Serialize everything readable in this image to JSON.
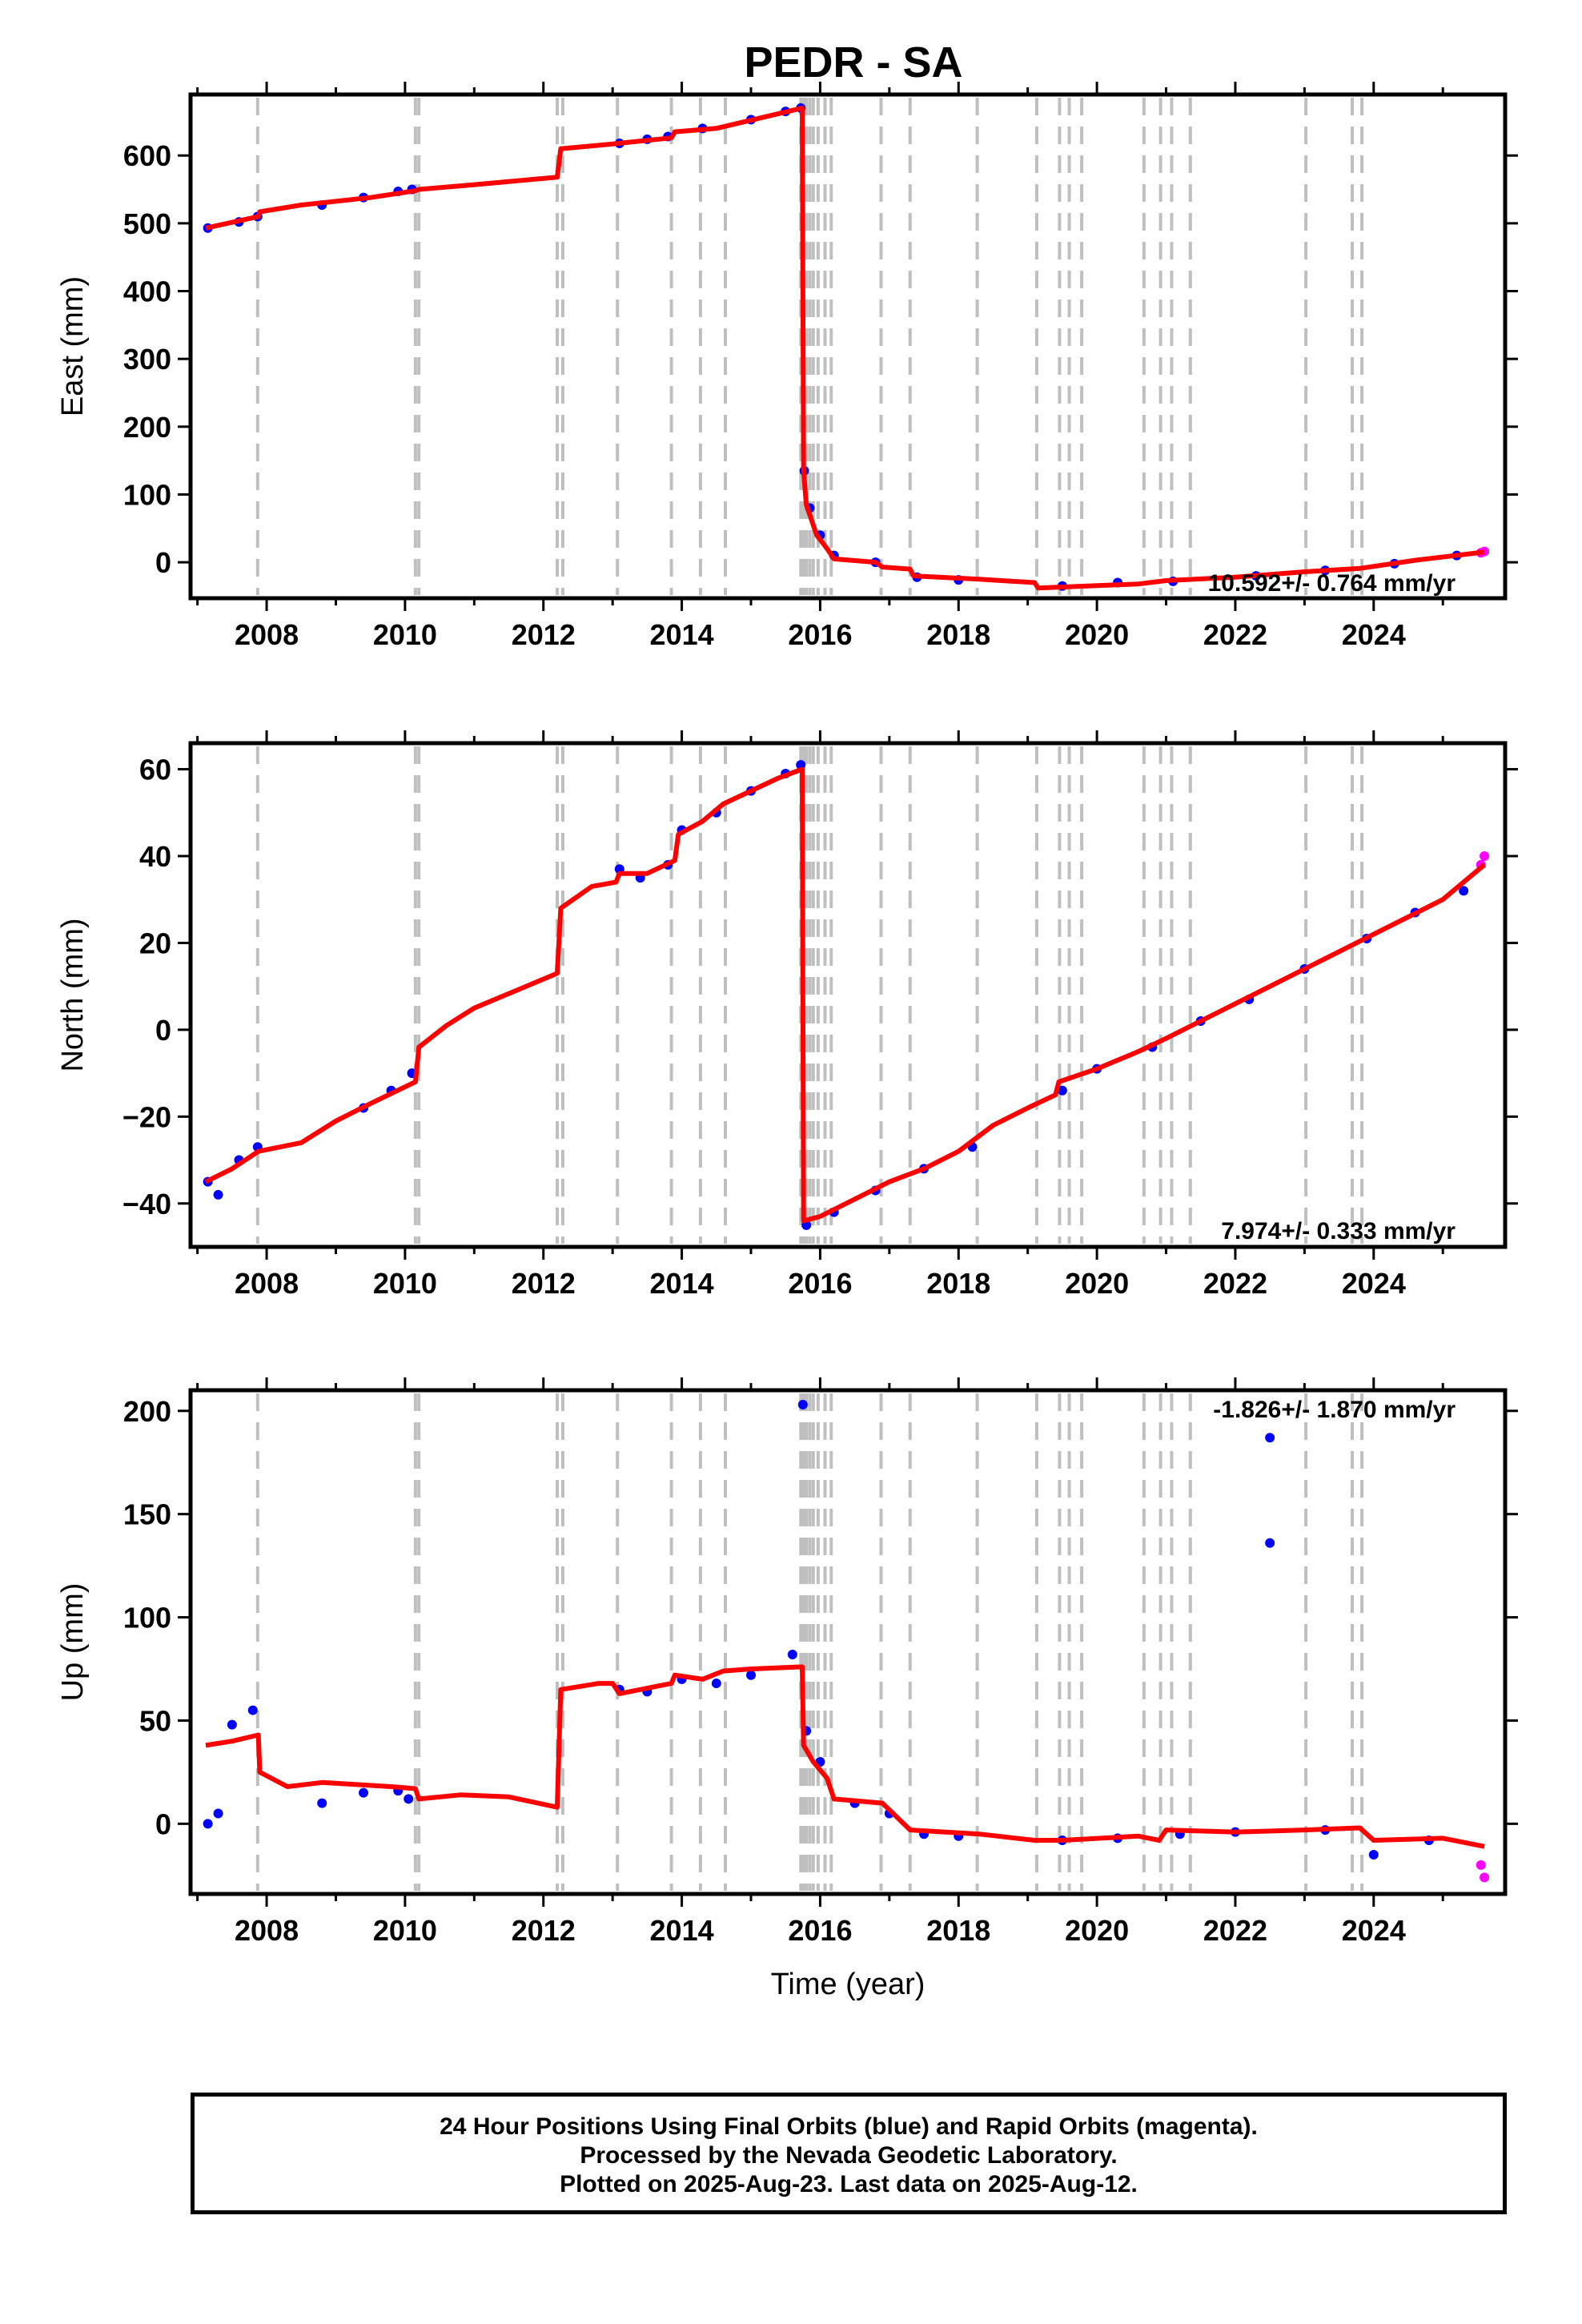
{
  "title": "PEDR - SA",
  "colors": {
    "final_orbit_points": "#0000ff",
    "rapid_orbit_points": "#ff00ff",
    "model_line": "#ff0000",
    "event_lines": "#bfbfbf"
  },
  "chart_data": [
    {
      "type": "scatter",
      "panel": "east",
      "ylabel": "East (mm)",
      "xlabel": "",
      "xlim": [
        2006.9,
        2025.9
      ],
      "ylim": [
        -53,
        690
      ],
      "xticks": [
        2008,
        2010,
        2012,
        2014,
        2016,
        2018,
        2020,
        2022,
        2024
      ],
      "yticks": [
        0,
        100,
        200,
        300,
        400,
        500,
        600
      ],
      "rate_label": "10.592+/- 0.764 mm/yr",
      "grid": false,
      "model_line": [
        [
          2007.12,
          493
        ],
        [
          2007.88,
          510
        ],
        [
          2007.9,
          517
        ],
        [
          2008.5,
          527
        ],
        [
          2009.5,
          538
        ],
        [
          2010.15,
          548
        ],
        [
          2010.2,
          550
        ],
        [
          2011.0,
          557
        ],
        [
          2012.2,
          568
        ],
        [
          2012.25,
          610
        ],
        [
          2013.0,
          617
        ],
        [
          2013.08,
          618
        ],
        [
          2013.85,
          626
        ],
        [
          2013.9,
          635
        ],
        [
          2014.5,
          640
        ],
        [
          2015.74,
          670
        ],
        [
          2015.76,
          135
        ],
        [
          2015.8,
          85
        ],
        [
          2015.95,
          40
        ],
        [
          2016.1,
          20
        ],
        [
          2016.2,
          5
        ],
        [
          2016.8,
          0
        ],
        [
          2016.9,
          -7
        ],
        [
          2017.3,
          -10
        ],
        [
          2017.35,
          -20
        ],
        [
          2018.3,
          -25
        ],
        [
          2019.1,
          -30
        ],
        [
          2019.15,
          -38
        ],
        [
          2020.6,
          -32
        ],
        [
          2021.0,
          -27
        ],
        [
          2022.0,
          -22
        ],
        [
          2023.0,
          -14
        ],
        [
          2023.8,
          -9
        ],
        [
          2024.6,
          3
        ],
        [
          2025.6,
          15
        ]
      ],
      "observations_final": [
        [
          2007.15,
          493
        ],
        [
          2007.6,
          502
        ],
        [
          2007.87,
          510
        ],
        [
          2008.8,
          527
        ],
        [
          2009.4,
          538
        ],
        [
          2009.9,
          547
        ],
        [
          2010.1,
          550
        ],
        [
          2013.1,
          618
        ],
        [
          2013.5,
          624
        ],
        [
          2013.8,
          628
        ],
        [
          2014.3,
          640
        ],
        [
          2015.0,
          653
        ],
        [
          2015.5,
          665
        ],
        [
          2015.72,
          670
        ],
        [
          2015.77,
          135
        ],
        [
          2015.85,
          80
        ],
        [
          2016.0,
          40
        ],
        [
          2016.2,
          10
        ],
        [
          2016.8,
          0
        ],
        [
          2017.4,
          -22
        ],
        [
          2018.0,
          -26
        ],
        [
          2019.5,
          -35
        ],
        [
          2020.3,
          -30
        ],
        [
          2021.1,
          -28
        ],
        [
          2022.3,
          -20
        ],
        [
          2023.3,
          -12
        ],
        [
          2024.3,
          -2
        ],
        [
          2025.2,
          10
        ]
      ],
      "observations_rapid": [
        [
          2025.55,
          14
        ],
        [
          2025.6,
          16
        ]
      ]
    },
    {
      "type": "scatter",
      "panel": "north",
      "ylabel": "North (mm)",
      "xlabel": "",
      "xlim": [
        2006.9,
        2025.9
      ],
      "ylim": [
        -50,
        66
      ],
      "xticks": [
        2008,
        2010,
        2012,
        2014,
        2016,
        2018,
        2020,
        2022,
        2024
      ],
      "yticks": [
        -40,
        -20,
        0,
        20,
        40,
        60
      ],
      "rate_label": "7.974+/- 0.333 mm/yr",
      "grid": false,
      "model_line": [
        [
          2007.12,
          -35
        ],
        [
          2007.5,
          -32
        ],
        [
          2007.88,
          -28
        ],
        [
          2008.5,
          -26
        ],
        [
          2009.0,
          -21
        ],
        [
          2009.5,
          -17
        ],
        [
          2010.15,
          -12
        ],
        [
          2010.2,
          -4
        ],
        [
          2010.6,
          1
        ],
        [
          2011.0,
          5
        ],
        [
          2011.6,
          9
        ],
        [
          2012.2,
          13
        ],
        [
          2012.25,
          28
        ],
        [
          2012.7,
          33
        ],
        [
          2013.05,
          34
        ],
        [
          2013.1,
          36
        ],
        [
          2013.5,
          36
        ],
        [
          2013.9,
          39
        ],
        [
          2013.95,
          45
        ],
        [
          2014.3,
          48
        ],
        [
          2014.6,
          52
        ],
        [
          2015.0,
          55
        ],
        [
          2015.4,
          58
        ],
        [
          2015.74,
          60
        ],
        [
          2015.76,
          -44
        ],
        [
          2016.0,
          -43
        ],
        [
          2016.5,
          -39
        ],
        [
          2017.0,
          -35
        ],
        [
          2017.5,
          -32
        ],
        [
          2018.0,
          -28
        ],
        [
          2018.5,
          -22
        ],
        [
          2019.0,
          -18
        ],
        [
          2019.4,
          -15
        ],
        [
          2019.45,
          -12
        ],
        [
          2020.0,
          -9
        ],
        [
          2020.6,
          -5
        ],
        [
          2021.0,
          -2
        ],
        [
          2021.5,
          2
        ],
        [
          2022.0,
          6
        ],
        [
          2022.5,
          10
        ],
        [
          2023.0,
          14
        ],
        [
          2023.5,
          18
        ],
        [
          2024.0,
          22
        ],
        [
          2024.5,
          26
        ],
        [
          2025.0,
          30
        ],
        [
          2025.6,
          38
        ]
      ],
      "observations_final": [
        [
          2007.15,
          -35
        ],
        [
          2007.3,
          -38
        ],
        [
          2007.6,
          -30
        ],
        [
          2007.87,
          -27
        ],
        [
          2009.4,
          -18
        ],
        [
          2009.8,
          -14
        ],
        [
          2010.1,
          -10
        ],
        [
          2013.1,
          37
        ],
        [
          2013.4,
          35
        ],
        [
          2013.8,
          38
        ],
        [
          2014.0,
          46
        ],
        [
          2014.5,
          50
        ],
        [
          2015.0,
          55
        ],
        [
          2015.5,
          59
        ],
        [
          2015.72,
          61
        ],
        [
          2015.8,
          -45
        ],
        [
          2016.2,
          -42
        ],
        [
          2016.8,
          -37
        ],
        [
          2017.5,
          -32
        ],
        [
          2018.2,
          -27
        ],
        [
          2019.5,
          -14
        ],
        [
          2020.0,
          -9
        ],
        [
          2020.8,
          -4
        ],
        [
          2021.5,
          2
        ],
        [
          2022.2,
          7
        ],
        [
          2023.0,
          14
        ],
        [
          2023.9,
          21
        ],
        [
          2024.6,
          27
        ],
        [
          2025.3,
          32
        ]
      ],
      "observations_rapid": [
        [
          2025.55,
          38
        ],
        [
          2025.6,
          40
        ]
      ]
    },
    {
      "type": "scatter",
      "panel": "up",
      "ylabel": "Up (mm)",
      "xlabel": "Time (year)",
      "xlim": [
        2006.9,
        2025.9
      ],
      "ylim": [
        -34,
        210
      ],
      "xticks": [
        2008,
        2010,
        2012,
        2014,
        2016,
        2018,
        2020,
        2022,
        2024
      ],
      "yticks": [
        0,
        50,
        100,
        150,
        200
      ],
      "rate_label": "-1.826+/- 1.870 mm/yr",
      "grid": false,
      "model_line": [
        [
          2007.12,
          38
        ],
        [
          2007.5,
          40
        ],
        [
          2007.88,
          43
        ],
        [
          2007.9,
          25
        ],
        [
          2008.3,
          18
        ],
        [
          2008.8,
          20
        ],
        [
          2009.3,
          19
        ],
        [
          2009.8,
          18
        ],
        [
          2010.15,
          17
        ],
        [
          2010.2,
          12
        ],
        [
          2010.8,
          14
        ],
        [
          2011.5,
          13
        ],
        [
          2012.2,
          8
        ],
        [
          2012.25,
          65
        ],
        [
          2012.8,
          68
        ],
        [
          2013.0,
          68
        ],
        [
          2013.1,
          63
        ],
        [
          2013.85,
          68
        ],
        [
          2013.9,
          72
        ],
        [
          2014.3,
          70
        ],
        [
          2014.6,
          74
        ],
        [
          2015.0,
          75
        ],
        [
          2015.74,
          76
        ],
        [
          2015.76,
          38
        ],
        [
          2015.9,
          30
        ],
        [
          2016.1,
          22
        ],
        [
          2016.2,
          12
        ],
        [
          2016.9,
          10
        ],
        [
          2017.3,
          -3
        ],
        [
          2018.3,
          -5
        ],
        [
          2019.1,
          -8
        ],
        [
          2019.5,
          -8
        ],
        [
          2020.6,
          -6
        ],
        [
          2020.9,
          -8
        ],
        [
          2021.0,
          -3
        ],
        [
          2022.0,
          -4
        ],
        [
          2023.0,
          -3
        ],
        [
          2023.8,
          -2
        ],
        [
          2024.0,
          -8
        ],
        [
          2025.0,
          -7
        ],
        [
          2025.6,
          -11
        ]
      ],
      "observations_final": [
        [
          2007.15,
          0
        ],
        [
          2007.3,
          5
        ],
        [
          2007.5,
          48
        ],
        [
          2007.8,
          55
        ],
        [
          2008.8,
          10
        ],
        [
          2009.4,
          15
        ],
        [
          2009.9,
          16
        ],
        [
          2010.05,
          12
        ],
        [
          2013.1,
          65
        ],
        [
          2013.5,
          64
        ],
        [
          2014.0,
          70
        ],
        [
          2014.5,
          68
        ],
        [
          2015.0,
          72
        ],
        [
          2015.6,
          82
        ],
        [
          2015.75,
          203
        ],
        [
          2015.8,
          45
        ],
        [
          2016.0,
          30
        ],
        [
          2016.5,
          10
        ],
        [
          2017.0,
          5
        ],
        [
          2017.5,
          -5
        ],
        [
          2018.0,
          -6
        ],
        [
          2019.5,
          -8
        ],
        [
          2020.3,
          -7
        ],
        [
          2021.2,
          -5
        ],
        [
          2022.0,
          -4
        ],
        [
          2022.5,
          187
        ],
        [
          2022.5,
          136
        ],
        [
          2023.3,
          -3
        ],
        [
          2024.0,
          -15
        ],
        [
          2024.8,
          -8
        ]
      ],
      "observations_rapid": [
        [
          2025.55,
          -20
        ],
        [
          2025.6,
          -26
        ]
      ]
    }
  ],
  "event_lines": [
    2007.87,
    2010.15,
    2010.2,
    2012.2,
    2012.28,
    2013.07,
    2013.85,
    2014.27,
    2014.63,
    2015.72,
    2015.76,
    2015.8,
    2015.85,
    2015.9,
    2015.97,
    2016.07,
    2016.16,
    2016.88,
    2017.3,
    2018.27,
    2019.13,
    2019.46,
    2019.6,
    2019.78,
    2020.68,
    2020.92,
    2021.08,
    2021.35,
    2023.02,
    2023.69,
    2023.83
  ],
  "footer": {
    "line1": "24 Hour Positions Using Final Orbits (blue) and Rapid Orbits (magenta).",
    "line2": "Processed by the Nevada Geodetic Laboratory.",
    "line3": "Plotted on 2025-Aug-23. Last data on 2025-Aug-12."
  }
}
